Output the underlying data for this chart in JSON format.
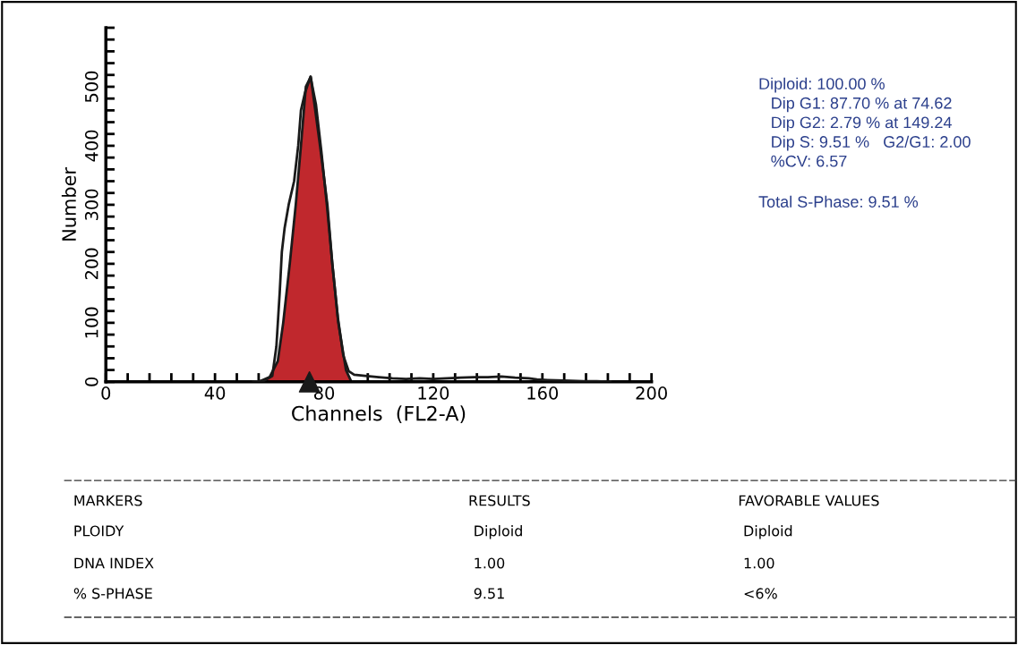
{
  "chart_data": {
    "type": "line",
    "xlabel": "Channels  (FL2-A)",
    "ylabel": "Number",
    "xlim": [
      0,
      200
    ],
    "ylim": [
      0,
      600
    ],
    "xticks": [
      0,
      {
        "value": 8,
        "label": null
      },
      {
        "value": 16,
        "label": null
      },
      {
        "value": 24,
        "label": null
      },
      {
        "value": 32,
        "label": null
      },
      40,
      {
        "value": 48,
        "label": null
      },
      {
        "value": 56,
        "label": null
      },
      {
        "value": 64,
        "label": null
      },
      {
        "value": 72,
        "label": null
      },
      80,
      {
        "value": 88,
        "label": null
      },
      {
        "value": 96,
        "label": null
      },
      {
        "value": 104,
        "label": null
      },
      {
        "value": 112,
        "label": null
      },
      120,
      {
        "value": 128,
        "label": null
      },
      {
        "value": 136,
        "label": null
      },
      {
        "value": 144,
        "label": null
      },
      {
        "value": 152,
        "label": null
      },
      160,
      {
        "value": 168,
        "label": null
      },
      {
        "value": 176,
        "label": null
      },
      {
        "value": 184,
        "label": null
      },
      {
        "value": 192,
        "label": null
      },
      200
    ],
    "yticks": [
      0,
      {
        "value": 20,
        "label": null
      },
      {
        "value": 40,
        "label": null
      },
      {
        "value": 60,
        "label": null
      },
      {
        "value": 80,
        "label": null
      },
      100,
      {
        "value": 120,
        "label": null
      },
      {
        "value": 140,
        "label": null
      },
      {
        "value": 160,
        "label": null
      },
      {
        "value": 180,
        "label": null
      },
      200,
      {
        "value": 220,
        "label": null
      },
      {
        "value": 240,
        "label": null
      },
      {
        "value": 260,
        "label": null
      },
      {
        "value": 280,
        "label": null
      },
      300,
      {
        "value": 320,
        "label": null
      },
      {
        "value": 340,
        "label": null
      },
      {
        "value": 360,
        "label": null
      },
      {
        "value": 380,
        "label": null
      },
      400,
      {
        "value": 420,
        "label": null
      },
      {
        "value": 440,
        "label": null
      },
      {
        "value": 460,
        "label": null
      },
      {
        "value": 480,
        "label": null
      },
      500,
      {
        "value": 520,
        "label": null
      },
      {
        "value": 540,
        "label": null
      },
      {
        "value": 560,
        "label": null
      },
      {
        "value": 580,
        "label": null
      },
      {
        "value": 600,
        "label": null
      }
    ],
    "grid": false,
    "legend": false,
    "series": [
      {
        "type": "area",
        "color": "#c0282d",
        "x": [
          56,
          60,
          63,
          65,
          67.4,
          69.6,
          71.5,
          73.3,
          75.1,
          78.5,
          81.2,
          83,
          85.2,
          88,
          90
        ],
        "values": [
          0,
          8,
          35,
          100,
          200,
          300,
          400,
          500,
          517,
          400,
          300,
          200,
          100,
          20,
          0
        ]
      },
      {
        "color": "#1a1a1a",
        "x": [
          54,
          58,
          61,
          62.5,
          63.7,
          64.5,
          65.5,
          67,
          69,
          70.5,
          71.5,
          73,
          75,
          77,
          79,
          81,
          83,
          85,
          87,
          89,
          91,
          95,
          100,
          105,
          110,
          115,
          120,
          125,
          130,
          135,
          140,
          145,
          150,
          155,
          158,
          162,
          168,
          175,
          180,
          185
        ],
        "values": [
          0,
          2,
          10,
          60,
          150,
          220,
          260,
          300,
          340,
          400,
          460,
          490,
          517,
          470,
          390,
          300,
          200,
          110,
          45,
          18,
          12,
          10,
          8,
          6,
          5,
          6,
          5,
          6,
          7,
          8,
          8,
          9,
          7,
          6,
          4,
          3,
          2,
          1,
          1,
          0
        ]
      },
      {
        "type": "scatter",
        "marker": "triangle",
        "color": "#1a1a1a",
        "x": [
          74.62
        ],
        "values": [
          0
        ]
      }
    ],
    "annotations": [
      "Diploid: 100.00 %",
      "Dip G1: 87.70 % at 74.62",
      "Dip G2: 2.79 % at 149.24",
      "Dip S: 9.51 %   G2/G1: 2.00",
      "%CV: 6.57",
      "Total S-Phase: 9.51 %",
      "MARKERS",
      "RESULTS",
      "FAVORABLE VALUES",
      "PLOIDY",
      "Diploid",
      "Diploid",
      "DNA INDEX",
      "1.00",
      "1.00",
      "% S-PHASE",
      "9.51",
      "<6%"
    ]
  }
}
